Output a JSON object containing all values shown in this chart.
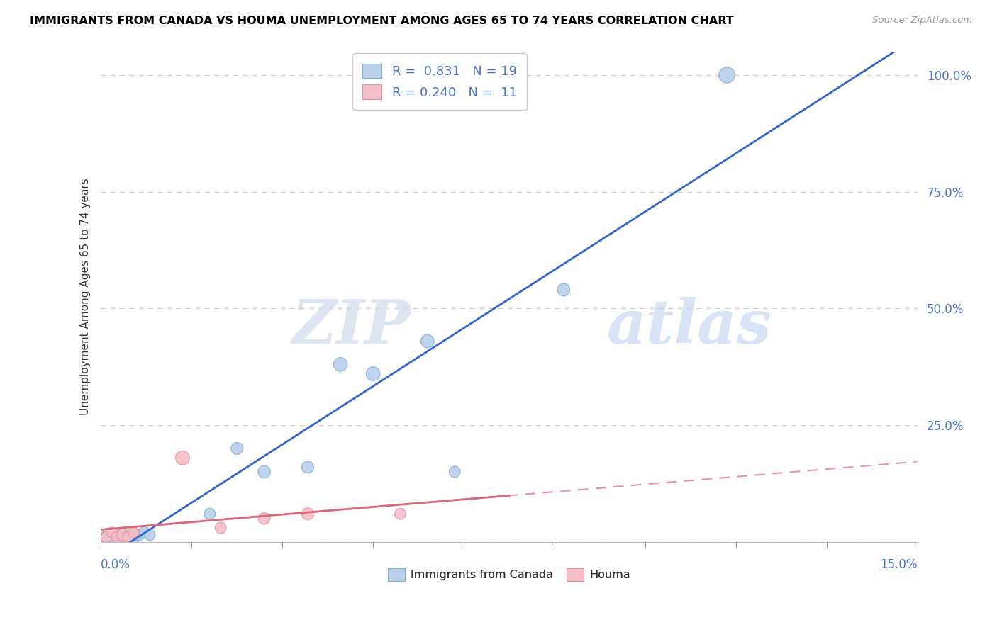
{
  "title": "IMMIGRANTS FROM CANADA VS HOUMA UNEMPLOYMENT AMONG AGES 65 TO 74 YEARS CORRELATION CHART",
  "source": "Source: ZipAtlas.com",
  "ylabel": "Unemployment Among Ages 65 to 74 years",
  "yticks": [
    0.0,
    0.25,
    0.5,
    0.75,
    1.0
  ],
  "ytick_labels": [
    "",
    "25.0%",
    "50.0%",
    "75.0%",
    "100.0%"
  ],
  "xlim": [
    0.0,
    0.15
  ],
  "ylim": [
    0.0,
    1.05
  ],
  "blue_R": "0.831",
  "blue_N": "19",
  "pink_R": "0.240",
  "pink_N": "11",
  "blue_color": "#b8d0ea",
  "blue_edge": "#7bafd4",
  "pink_color": "#f5bec8",
  "pink_edge": "#e8909a",
  "blue_line_color": "#3366cc",
  "pink_line_color": "#dd6677",
  "watermark_color": "#dce8f5",
  "grid_color": "#cccccc",
  "blue_points_x": [
    0.001,
    0.002,
    0.003,
    0.004,
    0.005,
    0.006,
    0.007,
    0.008,
    0.009,
    0.02,
    0.025,
    0.03,
    0.038,
    0.044,
    0.05,
    0.06,
    0.065,
    0.085,
    0.115
  ],
  "blue_points_y": [
    0.01,
    0.005,
    0.015,
    0.01,
    0.012,
    0.01,
    0.015,
    0.02,
    0.015,
    0.06,
    0.2,
    0.15,
    0.16,
    0.38,
    0.36,
    0.43,
    0.15,
    0.54,
    1.0
  ],
  "blue_sizes": [
    160,
    140,
    130,
    120,
    150,
    160,
    130,
    140,
    120,
    130,
    150,
    160,
    150,
    200,
    200,
    180,
    130,
    160,
    260
  ],
  "pink_points_x": [
    0.001,
    0.002,
    0.003,
    0.004,
    0.005,
    0.006,
    0.015,
    0.022,
    0.03,
    0.038,
    0.055
  ],
  "pink_points_y": [
    0.01,
    0.02,
    0.01,
    0.015,
    0.01,
    0.02,
    0.18,
    0.03,
    0.05,
    0.06,
    0.06
  ],
  "pink_sizes": [
    130,
    120,
    140,
    150,
    130,
    120,
    200,
    130,
    140,
    150,
    130
  ],
  "legend_blue_label": "R =  0.831   N = 19",
  "legend_pink_label": "R = 0.240   N =  11",
  "legend_bottom_blue": "Immigrants from Canada",
  "legend_bottom_pink": "Houma"
}
